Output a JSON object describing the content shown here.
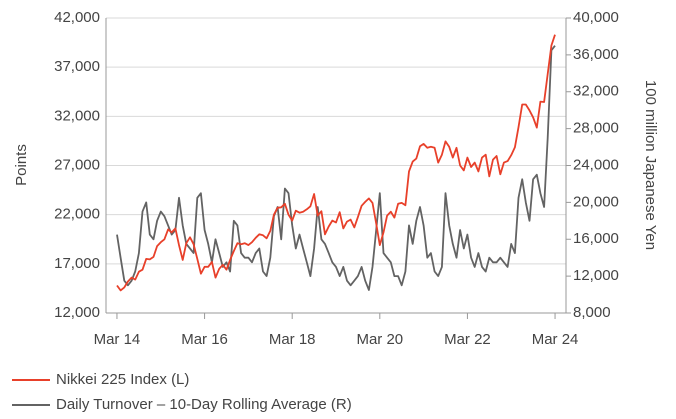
{
  "chart_data": {
    "type": "line",
    "y_label": "Points",
    "y2_label": "100 million Japanese Yen",
    "xlim": [
      "2013-12",
      "2024-06"
    ],
    "xticks": [
      {
        "value": "2014-03",
        "label": "Mar 14"
      },
      {
        "value": "2016-03",
        "label": "Mar 16"
      },
      {
        "value": "2018-03",
        "label": "Mar 18"
      },
      {
        "value": "2020-03",
        "label": "Mar 20"
      },
      {
        "value": "2022-03",
        "label": "Mar 22"
      },
      {
        "value": "2024-03",
        "label": "Mar 24"
      }
    ],
    "ylim": [
      12000,
      42000
    ],
    "yticks": [
      {
        "value": 12000,
        "label": "12,000"
      },
      {
        "value": 17000,
        "label": "17,000"
      },
      {
        "value": 22000,
        "label": "22,000"
      },
      {
        "value": 27000,
        "label": "27,000"
      },
      {
        "value": 32000,
        "label": "32,000"
      },
      {
        "value": 37000,
        "label": "37,000"
      },
      {
        "value": 42000,
        "label": "42,000"
      }
    ],
    "y2lim": [
      8000,
      40000
    ],
    "y2ticks": [
      {
        "value": 8000,
        "label": "8,000"
      },
      {
        "value": 12000,
        "label": "12,000"
      },
      {
        "value": 16000,
        "label": "16,000"
      },
      {
        "value": 20000,
        "label": "20,000"
      },
      {
        "value": 24000,
        "label": "24,000"
      },
      {
        "value": 28000,
        "label": "28,000"
      },
      {
        "value": 32000,
        "label": "32,000"
      },
      {
        "value": 36000,
        "label": "36,000"
      },
      {
        "value": 40000,
        "label": "40,000"
      }
    ],
    "grid": true,
    "x": [
      "2014-03",
      "2014-04",
      "2014-05",
      "2014-06",
      "2014-07",
      "2014-08",
      "2014-09",
      "2014-10",
      "2014-11",
      "2014-12",
      "2015-01",
      "2015-02",
      "2015-03",
      "2015-04",
      "2015-05",
      "2015-06",
      "2015-07",
      "2015-08",
      "2015-09",
      "2015-10",
      "2015-11",
      "2015-12",
      "2016-01",
      "2016-02",
      "2016-03",
      "2016-04",
      "2016-05",
      "2016-06",
      "2016-07",
      "2016-08",
      "2016-09",
      "2016-10",
      "2016-11",
      "2016-12",
      "2017-01",
      "2017-02",
      "2017-03",
      "2017-04",
      "2017-05",
      "2017-06",
      "2017-07",
      "2017-08",
      "2017-09",
      "2017-10",
      "2017-11",
      "2017-12",
      "2018-01",
      "2018-02",
      "2018-03",
      "2018-04",
      "2018-05",
      "2018-06",
      "2018-07",
      "2018-08",
      "2018-09",
      "2018-10",
      "2018-11",
      "2018-12",
      "2019-01",
      "2019-02",
      "2019-03",
      "2019-04",
      "2019-05",
      "2019-06",
      "2019-07",
      "2019-08",
      "2019-09",
      "2019-10",
      "2019-11",
      "2019-12",
      "2020-01",
      "2020-02",
      "2020-03",
      "2020-04",
      "2020-05",
      "2020-06",
      "2020-07",
      "2020-08",
      "2020-09",
      "2020-10",
      "2020-11",
      "2020-12",
      "2021-01",
      "2021-02",
      "2021-03",
      "2021-04",
      "2021-05",
      "2021-06",
      "2021-07",
      "2021-08",
      "2021-09",
      "2021-10",
      "2021-11",
      "2021-12",
      "2022-01",
      "2022-02",
      "2022-03",
      "2022-04",
      "2022-05",
      "2022-06",
      "2022-07",
      "2022-08",
      "2022-09",
      "2022-10",
      "2022-11",
      "2022-12",
      "2023-01",
      "2023-02",
      "2023-03",
      "2023-04",
      "2023-05",
      "2023-06",
      "2023-07",
      "2023-08",
      "2023-09",
      "2023-10",
      "2023-11",
      "2023-12",
      "2024-01",
      "2024-02",
      "2024-03"
    ],
    "series": [
      {
        "name": "Nikkei 225 Index (L)",
        "color": "#e8402a",
        "values": [
          14800,
          14300,
          14600,
          15200,
          15600,
          15400,
          16200,
          16400,
          17500,
          17450,
          17700,
          18800,
          19200,
          19500,
          20500,
          20200,
          20600,
          18900,
          17400,
          19100,
          19700,
          19000,
          17500,
          16000,
          16700,
          16700,
          17200,
          15600,
          16500,
          16900,
          16400,
          17400,
          18300,
          19100,
          19000,
          19100,
          18900,
          19200,
          19650,
          20000,
          19900,
          19600,
          20350,
          22000,
          22700,
          22750,
          23100,
          22000,
          21400,
          22400,
          22200,
          22300,
          22550,
          22850,
          24100,
          21900,
          22350,
          20000,
          20800,
          21400,
          21200,
          22250,
          20600,
          21300,
          21500,
          20700,
          21750,
          22900,
          23300,
          23650,
          23200,
          21100,
          18900,
          20200,
          21900,
          22300,
          21700,
          23100,
          23200,
          22950,
          26400,
          27400,
          27700,
          28950,
          29200,
          28800,
          28900,
          28800,
          27300,
          28100,
          29450,
          28900,
          27800,
          28800,
          27000,
          26500,
          27800,
          26850,
          27300,
          26400,
          27800,
          28100,
          25900,
          27600,
          27970,
          26100,
          27300,
          27450,
          28050,
          28850,
          30900,
          33200,
          33200,
          32600,
          31900,
          30850,
          33500,
          33460,
          36300,
          39200,
          40300
        ]
      },
      {
        "name": "Daily Turnover – 10-Day Rolling Average (R)",
        "color": "#636363",
        "axis": "y2",
        "values": [
          16500,
          14000,
          11500,
          11000,
          11500,
          12500,
          14500,
          19000,
          20000,
          16500,
          16000,
          18000,
          19000,
          18500,
          17500,
          16500,
          17000,
          20500,
          17500,
          15500,
          15000,
          14500,
          20500,
          21000,
          17000,
          15500,
          13500,
          16000,
          14500,
          13000,
          13500,
          12500,
          18000,
          17500,
          14500,
          14000,
          14000,
          13500,
          14500,
          15000,
          12500,
          12000,
          14000,
          18500,
          19500,
          16000,
          21500,
          21000,
          17500,
          15000,
          16500,
          15000,
          13500,
          12000,
          15000,
          19500,
          16000,
          15500,
          14500,
          13500,
          13000,
          12000,
          13000,
          11500,
          11000,
          11500,
          12000,
          13000,
          11500,
          10500,
          13000,
          17000,
          21000,
          14500,
          14000,
          13500,
          12000,
          12000,
          11000,
          12500,
          17500,
          15500,
          18000,
          19500,
          17500,
          14000,
          14500,
          12500,
          12000,
          13000,
          21000,
          17500,
          15500,
          14000,
          17000,
          15000,
          16500,
          14000,
          13000,
          14500,
          13000,
          12500,
          14000,
          13500,
          13500,
          14000,
          13500,
          13000,
          15500,
          14500,
          20500,
          22500,
          20000,
          18000,
          22500,
          23000,
          21000,
          19500,
          27000,
          36500,
          37000
        ]
      }
    ]
  }
}
